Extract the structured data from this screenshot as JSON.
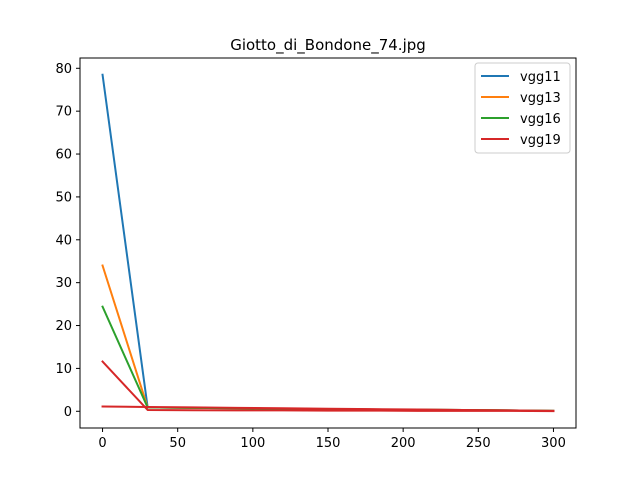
{
  "chart_data": {
    "type": "line",
    "title": "Giotto_di_Bondone_74.jpg",
    "xlabel": "",
    "ylabel": "",
    "xlim": [
      -15,
      315
    ],
    "ylim": [
      -3.9,
      82.4
    ],
    "xticks": [
      0,
      50,
      100,
      150,
      200,
      250,
      300
    ],
    "yticks": [
      0,
      10,
      20,
      30,
      40,
      50,
      60,
      70,
      80
    ],
    "grid": false,
    "legend_position": "top-right",
    "x": [
      0,
      30,
      60,
      90,
      120,
      150,
      180,
      210,
      240,
      270,
      300
    ],
    "series": [
      {
        "name": "vgg11",
        "color": "#1f77b4",
        "values": [
          78.5,
          0.9,
          0.8,
          0.7,
          0.6,
          0.5,
          0.4,
          0.35,
          0.3,
          0.2,
          0.1
        ]
      },
      {
        "name": "vgg13",
        "color": "#ff7f0e",
        "values": [
          34.0,
          0.9,
          0.8,
          0.7,
          0.6,
          0.5,
          0.4,
          0.35,
          0.3,
          0.2,
          0.1
        ]
      },
      {
        "name": "vgg16",
        "color": "#2ca02c",
        "values": [
          24.4,
          0.9,
          0.8,
          0.7,
          0.6,
          0.5,
          0.4,
          0.35,
          0.3,
          0.2,
          0.1
        ]
      },
      {
        "name": "vgg19",
        "color": "#d62728",
        "values": [
          11.6,
          0.3,
          0.25,
          0.2,
          0.2,
          0.15,
          0.15,
          0.1,
          0.1,
          0.1,
          0.05
        ]
      },
      {
        "name": "vgg19",
        "color": "#d62728",
        "values": [
          1.1,
          1.0,
          0.9,
          0.8,
          0.7,
          0.6,
          0.5,
          0.4,
          0.3,
          0.2,
          0.1
        ],
        "show_in_legend": false
      }
    ]
  }
}
